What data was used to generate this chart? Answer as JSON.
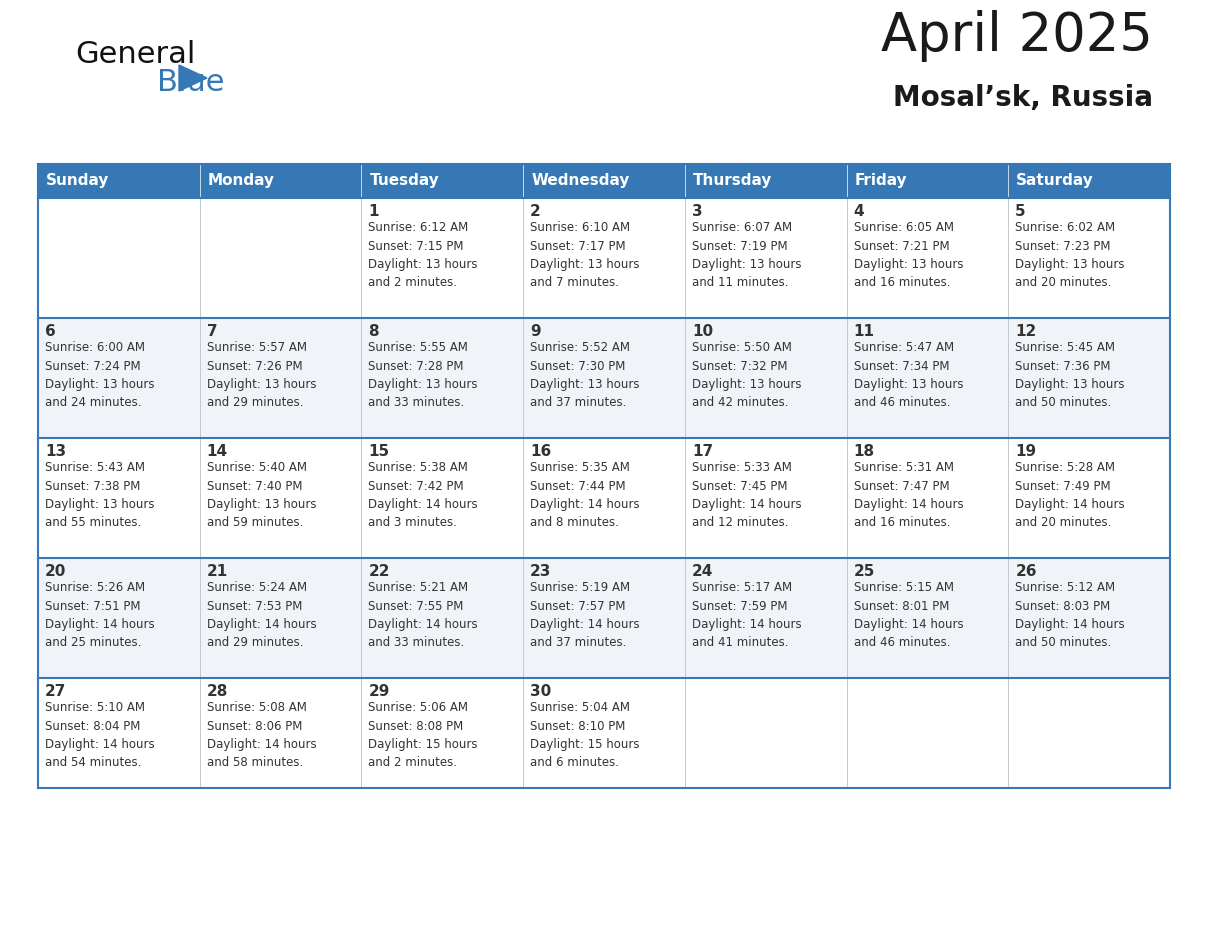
{
  "title": "April 2025",
  "subtitle": "Mosal’sk, Russia",
  "header_color": "#3578b5",
  "header_text_color": "#ffffff",
  "row_bg_even": "#ffffff",
  "row_bg_odd": "#f0f4f8",
  "border_color": "#3578b5",
  "separator_color": "#3578b5",
  "text_color": "#333333",
  "days_of_week": [
    "Sunday",
    "Monday",
    "Tuesday",
    "Wednesday",
    "Thursday",
    "Friday",
    "Saturday"
  ],
  "calendar_data": [
    [
      {
        "day": "",
        "info": ""
      },
      {
        "day": "",
        "info": ""
      },
      {
        "day": "1",
        "info": "Sunrise: 6:12 AM\nSunset: 7:15 PM\nDaylight: 13 hours\nand 2 minutes."
      },
      {
        "day": "2",
        "info": "Sunrise: 6:10 AM\nSunset: 7:17 PM\nDaylight: 13 hours\nand 7 minutes."
      },
      {
        "day": "3",
        "info": "Sunrise: 6:07 AM\nSunset: 7:19 PM\nDaylight: 13 hours\nand 11 minutes."
      },
      {
        "day": "4",
        "info": "Sunrise: 6:05 AM\nSunset: 7:21 PM\nDaylight: 13 hours\nand 16 minutes."
      },
      {
        "day": "5",
        "info": "Sunrise: 6:02 AM\nSunset: 7:23 PM\nDaylight: 13 hours\nand 20 minutes."
      }
    ],
    [
      {
        "day": "6",
        "info": "Sunrise: 6:00 AM\nSunset: 7:24 PM\nDaylight: 13 hours\nand 24 minutes."
      },
      {
        "day": "7",
        "info": "Sunrise: 5:57 AM\nSunset: 7:26 PM\nDaylight: 13 hours\nand 29 minutes."
      },
      {
        "day": "8",
        "info": "Sunrise: 5:55 AM\nSunset: 7:28 PM\nDaylight: 13 hours\nand 33 minutes."
      },
      {
        "day": "9",
        "info": "Sunrise: 5:52 AM\nSunset: 7:30 PM\nDaylight: 13 hours\nand 37 minutes."
      },
      {
        "day": "10",
        "info": "Sunrise: 5:50 AM\nSunset: 7:32 PM\nDaylight: 13 hours\nand 42 minutes."
      },
      {
        "day": "11",
        "info": "Sunrise: 5:47 AM\nSunset: 7:34 PM\nDaylight: 13 hours\nand 46 minutes."
      },
      {
        "day": "12",
        "info": "Sunrise: 5:45 AM\nSunset: 7:36 PM\nDaylight: 13 hours\nand 50 minutes."
      }
    ],
    [
      {
        "day": "13",
        "info": "Sunrise: 5:43 AM\nSunset: 7:38 PM\nDaylight: 13 hours\nand 55 minutes."
      },
      {
        "day": "14",
        "info": "Sunrise: 5:40 AM\nSunset: 7:40 PM\nDaylight: 13 hours\nand 59 minutes."
      },
      {
        "day": "15",
        "info": "Sunrise: 5:38 AM\nSunset: 7:42 PM\nDaylight: 14 hours\nand 3 minutes."
      },
      {
        "day": "16",
        "info": "Sunrise: 5:35 AM\nSunset: 7:44 PM\nDaylight: 14 hours\nand 8 minutes."
      },
      {
        "day": "17",
        "info": "Sunrise: 5:33 AM\nSunset: 7:45 PM\nDaylight: 14 hours\nand 12 minutes."
      },
      {
        "day": "18",
        "info": "Sunrise: 5:31 AM\nSunset: 7:47 PM\nDaylight: 14 hours\nand 16 minutes."
      },
      {
        "day": "19",
        "info": "Sunrise: 5:28 AM\nSunset: 7:49 PM\nDaylight: 14 hours\nand 20 minutes."
      }
    ],
    [
      {
        "day": "20",
        "info": "Sunrise: 5:26 AM\nSunset: 7:51 PM\nDaylight: 14 hours\nand 25 minutes."
      },
      {
        "day": "21",
        "info": "Sunrise: 5:24 AM\nSunset: 7:53 PM\nDaylight: 14 hours\nand 29 minutes."
      },
      {
        "day": "22",
        "info": "Sunrise: 5:21 AM\nSunset: 7:55 PM\nDaylight: 14 hours\nand 33 minutes."
      },
      {
        "day": "23",
        "info": "Sunrise: 5:19 AM\nSunset: 7:57 PM\nDaylight: 14 hours\nand 37 minutes."
      },
      {
        "day": "24",
        "info": "Sunrise: 5:17 AM\nSunset: 7:59 PM\nDaylight: 14 hours\nand 41 minutes."
      },
      {
        "day": "25",
        "info": "Sunrise: 5:15 AM\nSunset: 8:01 PM\nDaylight: 14 hours\nand 46 minutes."
      },
      {
        "day": "26",
        "info": "Sunrise: 5:12 AM\nSunset: 8:03 PM\nDaylight: 14 hours\nand 50 minutes."
      }
    ],
    [
      {
        "day": "27",
        "info": "Sunrise: 5:10 AM\nSunset: 8:04 PM\nDaylight: 14 hours\nand 54 minutes."
      },
      {
        "day": "28",
        "info": "Sunrise: 5:08 AM\nSunset: 8:06 PM\nDaylight: 14 hours\nand 58 minutes."
      },
      {
        "day": "29",
        "info": "Sunrise: 5:06 AM\nSunset: 8:08 PM\nDaylight: 15 hours\nand 2 minutes."
      },
      {
        "day": "30",
        "info": "Sunrise: 5:04 AM\nSunset: 8:10 PM\nDaylight: 15 hours\nand 6 minutes."
      },
      {
        "day": "",
        "info": ""
      },
      {
        "day": "",
        "info": ""
      },
      {
        "day": "",
        "info": ""
      }
    ]
  ],
  "logo_general_color": "#111111",
  "logo_blue_color": "#3578b5",
  "logo_triangle_color": "#3578b5"
}
